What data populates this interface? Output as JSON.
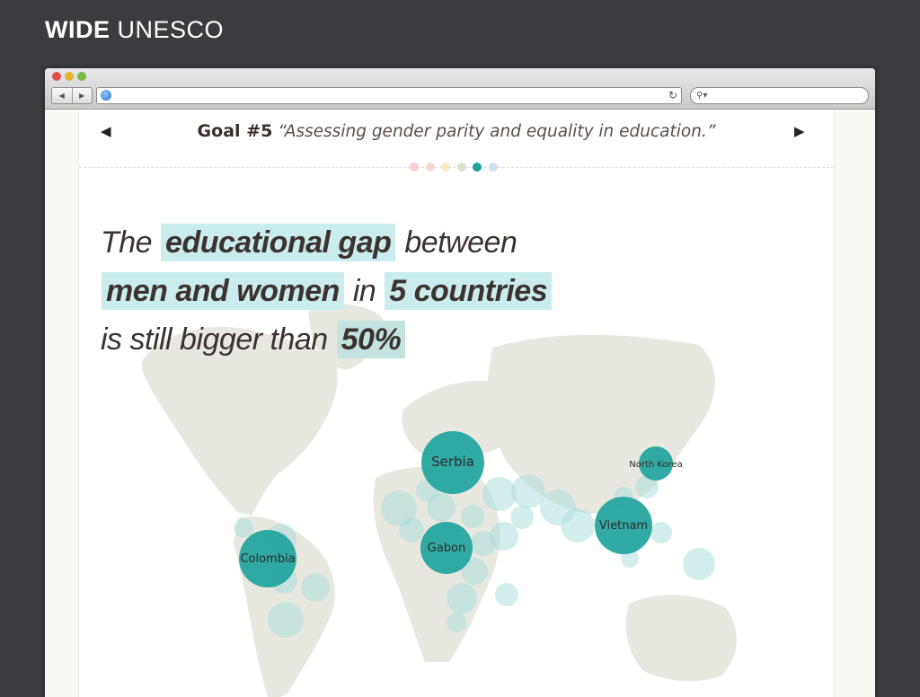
{
  "brand": {
    "bold": "WIDE",
    "light": "UNESCO"
  },
  "browser": {
    "back_icon": "back-arrow-icon",
    "forward_icon": "forward-arrow-icon",
    "url": "",
    "search": ""
  },
  "goal": {
    "number": "Goal #5",
    "quote": "“Assessing gender parity and equality in education.”",
    "prev_icon": "triangle-left-icon",
    "next_icon": "triangle-right-icon",
    "pager_colors": [
      "#f6d0d3",
      "#f8d7cf",
      "#f7ebc3",
      "#dbe2cf",
      "#1ea39c",
      "#cfe0ee"
    ],
    "active_page": 5
  },
  "headline": {
    "l1_pre": "The ",
    "l1_hl": "educational gap",
    "l1_post": " between",
    "l2_hl1": "men and women",
    "l2_mid": " in ",
    "l2_hl2": "5 countries",
    "l3_pre": "is still bigger than ",
    "l3_hl": "50%"
  },
  "map": {
    "labels": [
      "Serbia",
      "North Korea",
      "Vietnam",
      "Gabon",
      "Colombia"
    ],
    "accent": "#1fa39c",
    "faint": "#9fd9d8"
  }
}
